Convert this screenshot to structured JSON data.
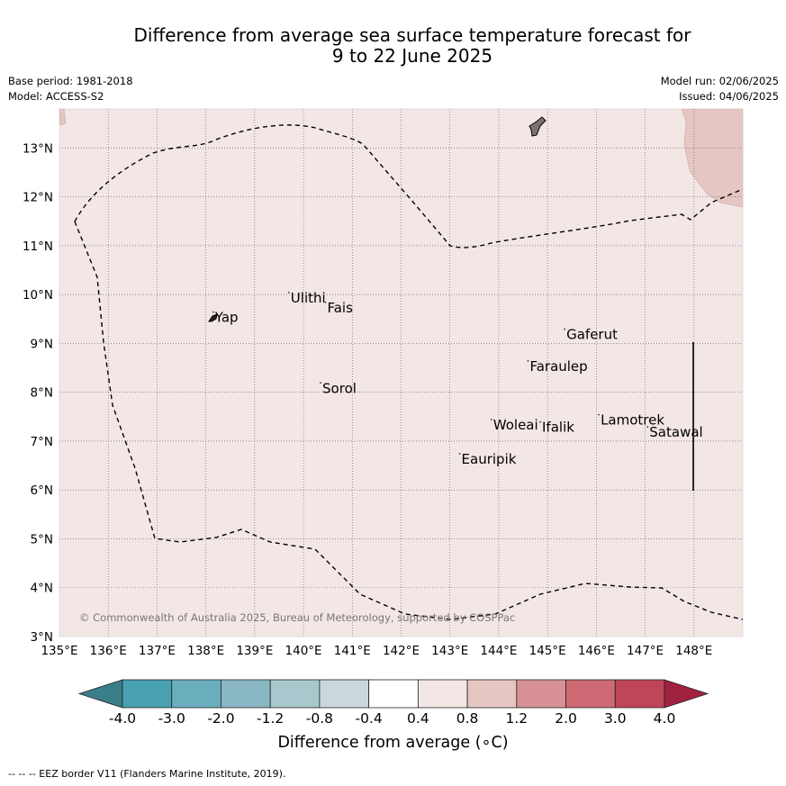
{
  "title_line1": "Difference from average sea surface temperature forecast for",
  "title_line2": "9 to 22 June 2025",
  "base_period": "Base period: 1981-2018",
  "model": "Model: ACCESS-S2",
  "model_run": "Model run: 02/06/2025",
  "issued": "Issued: 04/06/2025",
  "copyright": "© Commonwealth of Australia 2025, Bureau of Meteorology, supported by COSPPac",
  "footnote": "--  --  -- EEZ border V11 (Flanders Marine Institute, 2019).",
  "colorbar_label": "Difference from average (∘C)",
  "map": {
    "lon_range": [
      135,
      149
    ],
    "lat_range": [
      3,
      13.8
    ],
    "lon_ticks": [
      "135°E",
      "136°E",
      "137°E",
      "138°E",
      "139°E",
      "140°E",
      "141°E",
      "142°E",
      "143°E",
      "144°E",
      "145°E",
      "146°E",
      "147°E",
      "148°E"
    ],
    "lat_ticks": [
      "3°N",
      "4°N",
      "5°N",
      "6°N",
      "7°N",
      "8°N",
      "9°N",
      "10°N",
      "11°N",
      "12°N",
      "13°N"
    ],
    "background_color": "#f3e7e6",
    "places": [
      {
        "name": "Yap",
        "lon": 138.15,
        "lat": 9.55
      },
      {
        "name": "Ulithi",
        "lon": 139.7,
        "lat": 9.95
      },
      {
        "name": "Fais",
        "lon": 140.45,
        "lat": 9.75
      },
      {
        "name": "Sorol",
        "lon": 140.35,
        "lat": 8.1
      },
      {
        "name": "Gaferut",
        "lon": 145.35,
        "lat": 9.2
      },
      {
        "name": "Faraulep",
        "lon": 144.6,
        "lat": 8.55
      },
      {
        "name": "Woleai",
        "lon": 143.85,
        "lat": 7.35
      },
      {
        "name": "Ifalik",
        "lon": 144.85,
        "lat": 7.3
      },
      {
        "name": "Eauripik",
        "lon": 143.2,
        "lat": 6.65
      },
      {
        "name": "Lamotrek",
        "lon": 146.05,
        "lat": 7.45
      },
      {
        "name": "Satawal",
        "lon": 147.05,
        "lat": 7.2
      }
    ]
  },
  "colorbar": {
    "tick_labels": [
      "-4.0",
      "-3.0",
      "-2.0",
      "-1.2",
      "-0.8",
      "-0.4",
      "0.4",
      "0.8",
      "1.2",
      "2.0",
      "3.0",
      "4.0"
    ],
    "colors": [
      "#49a2b2",
      "#6aaebe",
      "#89b7c3",
      "#a9c8cd",
      "#cad7db",
      "#ffffff",
      "#f3e7e6",
      "#e6c6c2",
      "#d79196",
      "#cd6a73",
      "#bf4658"
    ],
    "under_color": "#3a7e8a",
    "over_color": "#a0213f"
  }
}
